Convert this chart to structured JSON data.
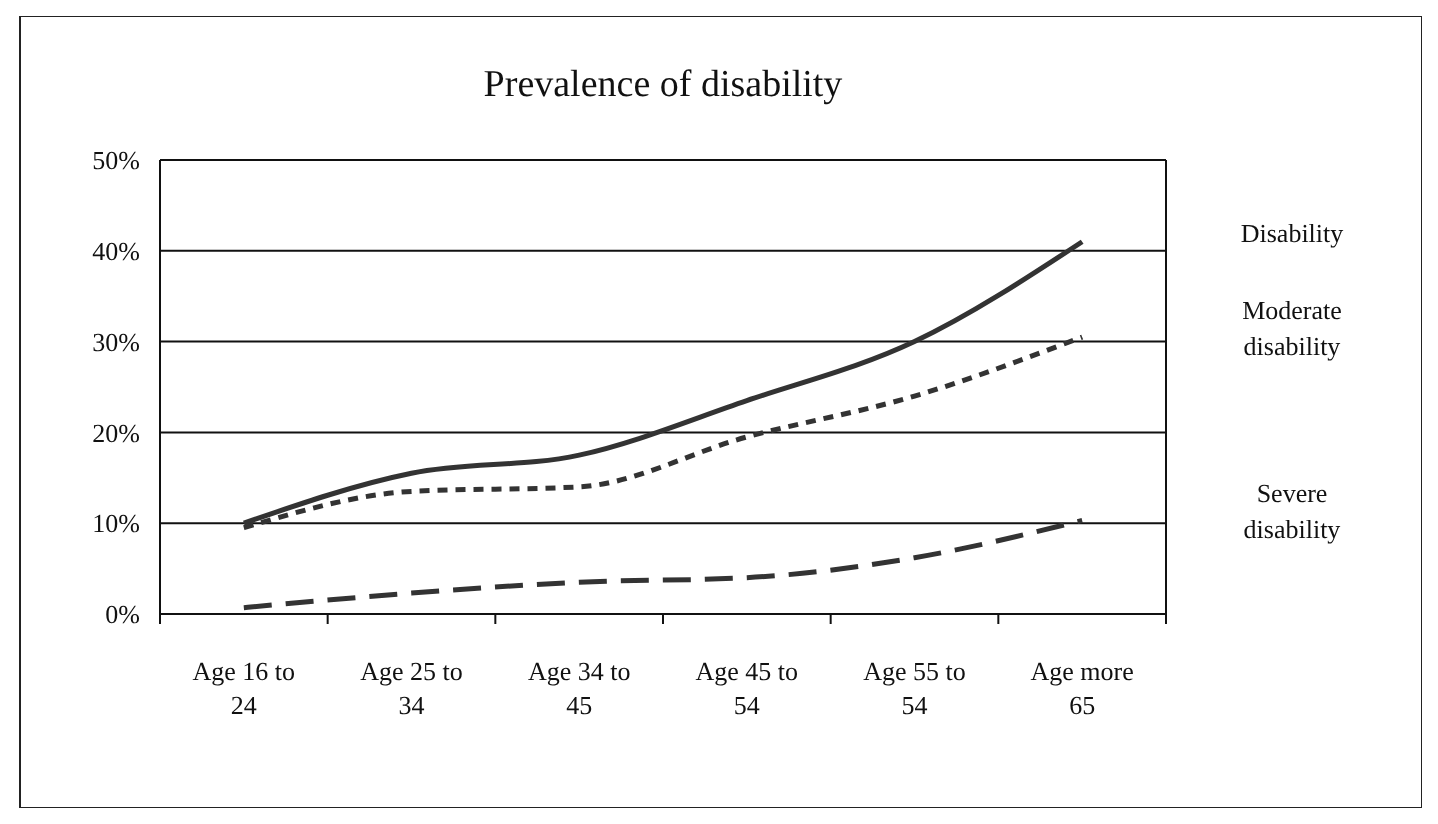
{
  "chart_data": {
    "type": "line",
    "title": "Prevalence of disability",
    "categories": [
      "Age 16 to 24",
      "Age 25 to 34",
      "Age 34 to 45",
      "Age 45 to 54",
      "Age 55 to 54",
      "Age more 65"
    ],
    "series": [
      {
        "name": "Disability",
        "color": "#333333",
        "line_style": "solid",
        "values": [
          10,
          15.5,
          17.5,
          23.5,
          30,
          41
        ]
      },
      {
        "name": "Moderate disability",
        "color": "#333333",
        "line_style": "dotted",
        "values": [
          9.5,
          13.5,
          14,
          19.5,
          24,
          30.5
        ]
      },
      {
        "name": "Severe disability",
        "color": "#333333",
        "line_style": "dashed",
        "values": [
          0.7,
          2.3,
          3.5,
          4,
          6.2,
          10.3
        ]
      }
    ],
    "ylim": [
      0,
      50
    ],
    "yticks": [
      {
        "value": 0,
        "label": "0%"
      },
      {
        "value": 10,
        "label": "10%"
      },
      {
        "value": 20,
        "label": "20%"
      },
      {
        "value": 30,
        "label": "30%"
      },
      {
        "value": 40,
        "label": "40%"
      },
      {
        "value": 50,
        "label": "50%"
      }
    ],
    "grid": "y"
  }
}
